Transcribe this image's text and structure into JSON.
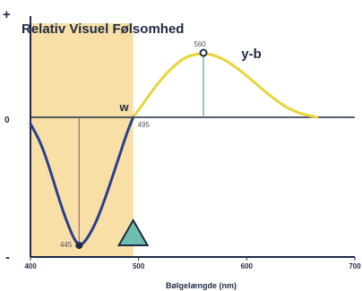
{
  "chart_data": {
    "type": "line",
    "title": "Relativ Visuel Følsomhed",
    "xlabel": "Bølgelængde (nm)",
    "ylabel": "",
    "xlim": [
      400,
      700
    ],
    "ylim": [
      -1,
      1
    ],
    "x_ticks": [
      "400",
      "500",
      "600",
      "700"
    ],
    "y_top_label": "+",
    "y_bottom_label": "-",
    "zero_label": "0",
    "highlight_band": {
      "x_start": 400,
      "x_end": 495,
      "color": "#f7dfa6"
    },
    "series": [
      {
        "name": "y-b",
        "color": "#e8d43a",
        "segment": "positive",
        "x": [
          495,
          505,
          515,
          525,
          535,
          545,
          560,
          575,
          590,
          605,
          620,
          635,
          650,
          665
        ],
        "y": [
          0,
          0.22,
          0.45,
          0.64,
          0.8,
          0.91,
          0.96,
          0.9,
          0.75,
          0.55,
          0.34,
          0.16,
          0.05,
          0
        ]
      },
      {
        "name": "blue",
        "color": "#2c3f8c",
        "segment": "negative",
        "x": [
          400,
          410,
          420,
          430,
          440,
          445,
          450,
          460,
          470,
          480,
          490,
          495
        ],
        "y": [
          -0.05,
          -0.2,
          -0.45,
          -0.72,
          -0.93,
          -0.98,
          -0.96,
          -0.82,
          -0.6,
          -0.35,
          -0.1,
          0
        ]
      }
    ],
    "markers": [
      {
        "label": "w",
        "x": 495,
        "y": 0,
        "type": "crossing",
        "value_label": "495"
      },
      {
        "label": "560",
        "x": 560,
        "y": 0.96,
        "type": "peak",
        "line_color": "#5aa86a"
      },
      {
        "label": "445",
        "x": 445,
        "y": -0.98,
        "type": "trough",
        "line_color": "#a06a8a"
      }
    ],
    "triangle_marker": {
      "x": 495,
      "color": "#6fbfb0"
    }
  }
}
